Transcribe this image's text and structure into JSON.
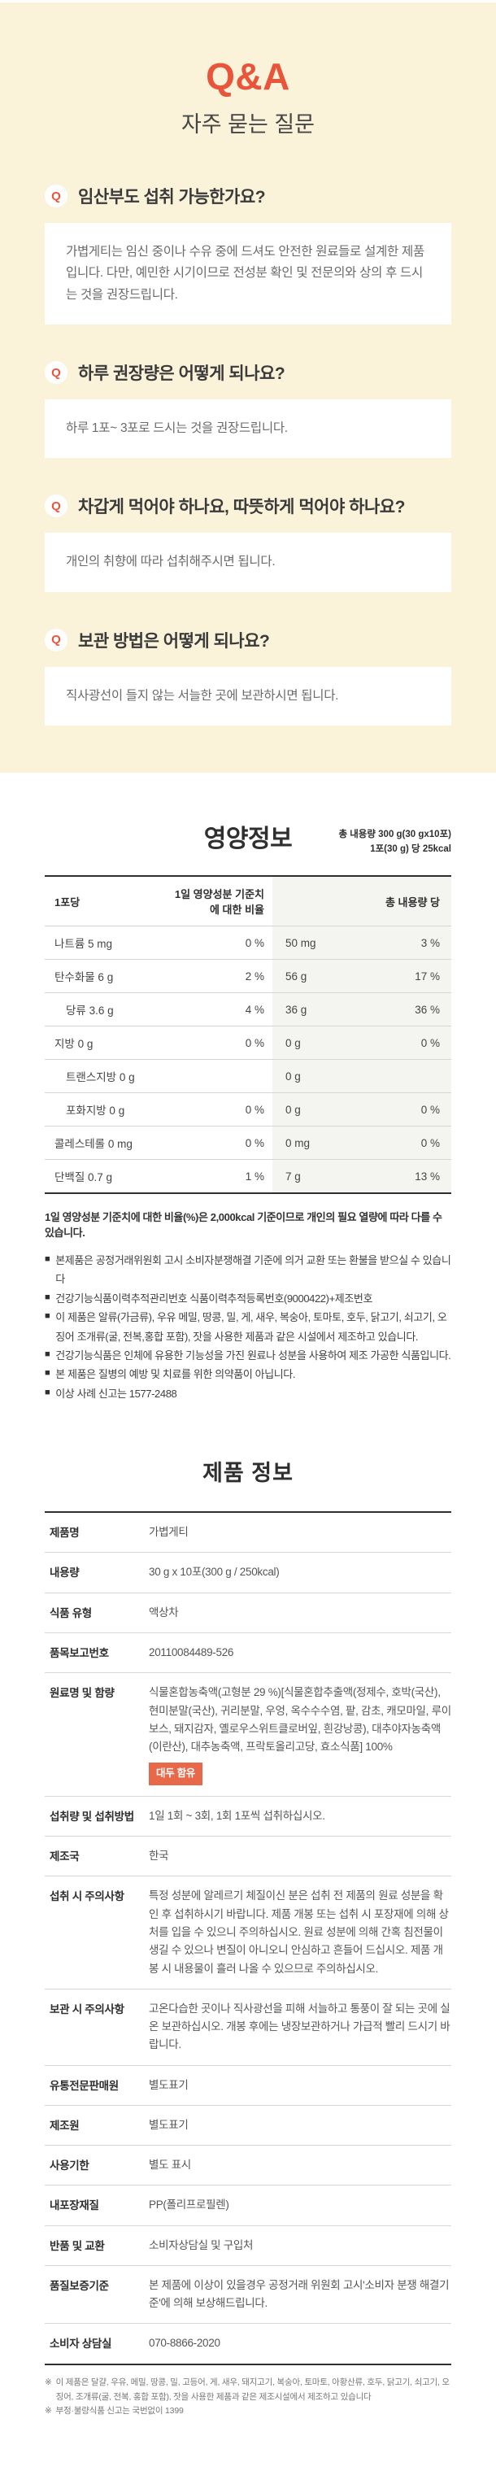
{
  "qna": {
    "title": "Q&A",
    "subtitle": "자주 묻는 질문",
    "q_label": "Q",
    "items": [
      {
        "question": "임산부도 섭취 가능한가요?",
        "answer": "가볍게티는 임신 중이나 수유 중에 드셔도 안전한 원료들로 설계한 제품입니다. 다만, 예민한 시기이므로 전성분 확인 및 전문의와 상의 후 드시는 것을 권장드립니다."
      },
      {
        "question": "하루 권장량은 어떻게 되나요?",
        "answer": "하루 1포~ 3포로 드시는 것을 권장드립니다."
      },
      {
        "question": "차갑게 먹어야 하나요, 따뜻하게 먹어야 하나요?",
        "answer": "개인의 취향에 따라 섭취해주시면 됩니다."
      },
      {
        "question": "보관 방법은 어떻게 되나요?",
        "answer": "직사광선이 들지 않는 서늘한 곳에 보관하시면 됩니다."
      }
    ]
  },
  "nutrition": {
    "title": "영양정보",
    "total_line1": "총 내용량 300 g(30 gx10포)",
    "total_line2": "1포(30 g) 당 25kcal",
    "col_per_serving": "1포당",
    "col_daily_ratio": "1일 영양성분 기준치에 대한 비율",
    "col_total_blank": "",
    "col_total": "총 내용량 당",
    "rows": [
      {
        "name": "나트륨 5 mg",
        "ratio": "0 %",
        "total": "50 mg",
        "total_ratio": "3 %",
        "indent": false
      },
      {
        "name": "탄수화물 6 g",
        "ratio": "2 %",
        "total": "56 g",
        "total_ratio": "17 %",
        "indent": false
      },
      {
        "name": "당류 3.6 g",
        "ratio": "4 %",
        "total": "36 g",
        "total_ratio": "36 %",
        "indent": true
      },
      {
        "name": "지방 0 g",
        "ratio": "0 %",
        "total": "0 g",
        "total_ratio": "0 %",
        "indent": false
      },
      {
        "name": "트랜스지방 0 g",
        "ratio": "",
        "total": "0 g",
        "total_ratio": "",
        "indent": true
      },
      {
        "name": "포화지방 0 g",
        "ratio": "0 %",
        "total": "0 g",
        "total_ratio": "0 %",
        "indent": true
      },
      {
        "name": "콜레스테롤 0 mg",
        "ratio": "0 %",
        "total": "0 mg",
        "total_ratio": "0 %",
        "indent": false
      },
      {
        "name": "단백질 0.7 g",
        "ratio": "1 %",
        "total": "7 g",
        "total_ratio": "13 %",
        "indent": false
      }
    ],
    "note": "1일 영양성분 기준치에 대한 비율(%)은 2,000kcal 기준이므로 개인의 필요 열량에 따라 다를 수 있습니다.",
    "bullet_marker": "■",
    "bullets": [
      {
        "text": "본제품은 공정거래위원회 고시 소비자분쟁해결 기준에 의거 교환 또는 환불을 받으실 수 있습니다"
      },
      {
        "text": "건강기능식품이력추적관리번호 식품이력추적등록번호(9000422)+제조번호"
      },
      {
        "text": "이 제품은 알류(가금류), 우유 메밀, 땅콩, 밀, 게, 새우, 복숭아, 토마토, 호두, 닭고기, 쇠고기, 오징어 조개류(굴, 전복,홍합 포함), 잣을 사용한 제품과 같은 시설에서 제조하고 있습니다."
      },
      {
        "text": "건강기능식품은 인체에 유용한 기능성을 가진 원료나 성분을 사용하여 제조 가공한 식품입니다."
      },
      {
        "text": "본 제품은 질병의 예방 및 치료를 위한 의약품이 아닙니다."
      },
      {
        "text": "이상 사례 신고는 1577-2488"
      }
    ]
  },
  "product": {
    "title": "제품 정보",
    "rows": [
      {
        "label": "제품명",
        "value": "가볍게티"
      },
      {
        "label": "내용량",
        "value": "30 g x 10포(300 g / 250kcal)"
      },
      {
        "label": "식품 유형",
        "value": "액상차"
      },
      {
        "label": "품목보고번호",
        "value": "20110084489-526"
      },
      {
        "label": "원료명 및 함량",
        "value": "식물혼합농축액(고형분 29 %)[식물혼합추출액(정제수, 호박(국산), 현미분말(국산), 귀리분말, 우엉, 옥수수수염, 팥, 감초, 캐모마일, 루이보스, 돼지감자, 옐로우스위트클로버잎, 흰강낭콩), 대추야자농축액(이란산), 대추농축액, 프락토올리고당, 효소식품] 100%",
        "badge": "대두 함유"
      },
      {
        "label": "섭취량 및 섭취방법",
        "value": "1일 1회 ~ 3회, 1회 1포씩 섭취하십시오."
      },
      {
        "label": "제조국",
        "value": "한국"
      },
      {
        "label": "섭취 시 주의사항",
        "value": "특정 성분에 알레르기 체질이신 분은 섭취 전 제품의 원료 성분을 확인 후 섭취하시기 바랍니다. 제품 개봉 또는 섭취 시 포장재에 의해 상처를 입을 수 있으니 주의하십시오. 원료 성분에 의해 간혹 침전물이 생길 수 있으나 변질이 아니오니 안심하고 흔들어 드십시오. 제품 개봉 시 내용물이 흘러 나올 수 있으므로 주의하십시오."
      },
      {
        "label": "보관 시 주의사항",
        "value": "고온다습한 곳이나 직사광선을 피해 서늘하고 통풍이 잘 되는 곳에 실온 보관하십시오. 개봉 후에는 냉장보관하거나 가급적 빨리 드시기 바랍니다."
      },
      {
        "label": "유통전문판매원",
        "value": "별도표기"
      },
      {
        "label": "제조원",
        "value": "별도표기"
      },
      {
        "label": "사용기한",
        "value": "별도 표시"
      },
      {
        "label": "내포장재질",
        "value": "PP(폴리프로필렌)"
      },
      {
        "label": "반품 및 교환",
        "value": "소비자상담실 및 구입처"
      },
      {
        "label": "품질보증기준",
        "value": "본 제품에 이상이 있을경우 공정거래 위원회 고시'소비자 분쟁 해결기준'에 의해 보상해드립니다."
      },
      {
        "label": "소비자 상담실",
        "value": "070-8866-2020"
      }
    ],
    "footnote_marker": "※",
    "footnotes": [
      {
        "text": "이 제품은 달걀, 우유, 메밀, 땅콩, 밀, 고등어, 게, 새우, 돼지고기, 복숭아, 토마토, 아황산류, 호두, 닭고기, 쇠고기, 오징어, 조개류(굴, 전복, 홍합 포함), 잣을 사용한 제품과 같은 제조시설에서 제조하고 있습니다"
      },
      {
        "text": "부정·불량식품 신고는 국번없이 1399"
      }
    ]
  },
  "colors": {
    "accent_red": "#e8553a",
    "badge_orange": "#e8694a",
    "cream_background": "#fbf3d9"
  }
}
